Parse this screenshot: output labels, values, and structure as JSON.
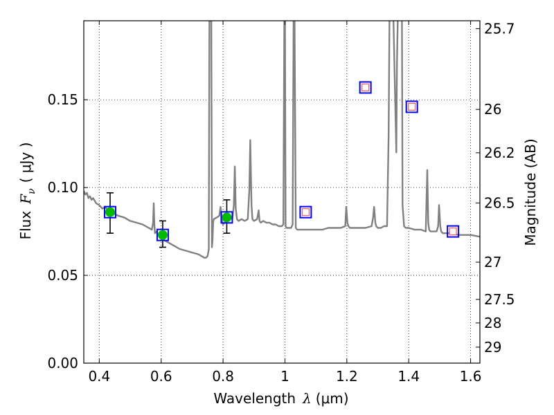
{
  "chart_data": {
    "type": "line",
    "xlabel_prefix": "Wavelength",
    "xlabel_symbol": "λ",
    "xlabel_units": "(μm)",
    "ylabel_prefix": "Flux",
    "ylabel_symbol": "F",
    "ylabel_subscript": "ν",
    "ylabel_units": "( μJy )",
    "y2label": "Magnitude (AB)",
    "xlim": [
      0.35,
      1.63
    ],
    "ylim": [
      0.0,
      0.195
    ],
    "grid": true,
    "x_ticks": [
      {
        "value": 0.4,
        "label": "0.4"
      },
      {
        "value": 0.6,
        "label": "0.6"
      },
      {
        "value": 0.8,
        "label": "0.8"
      },
      {
        "value": 1.0,
        "label": "1"
      },
      {
        "value": 1.2,
        "label": "1.2"
      },
      {
        "value": 1.4,
        "label": "1.4"
      },
      {
        "value": 1.6,
        "label": "1.6"
      }
    ],
    "y_ticks": [
      {
        "value": 0.0,
        "label": "0.00"
      },
      {
        "value": 0.05,
        "label": "0.05"
      },
      {
        "value": 0.1,
        "label": "0.10"
      },
      {
        "value": 0.15,
        "label": "0.15"
      }
    ],
    "mag_ticks": [
      {
        "value": 0.1905,
        "label": "25.7"
      },
      {
        "value": 0.1445,
        "label": "26"
      },
      {
        "value": 0.1198,
        "label": "26.2"
      },
      {
        "value": 0.0912,
        "label": "26.5"
      },
      {
        "value": 0.0575,
        "label": "27"
      },
      {
        "value": 0.0363,
        "label": "27.5"
      },
      {
        "value": 0.0229,
        "label": "28"
      },
      {
        "value": 0.0091,
        "label": "29"
      }
    ],
    "series": [
      {
        "name": "model-spectrum",
        "color": "#808080",
        "x": [
          0.35,
          0.355,
          0.36,
          0.365,
          0.37,
          0.375,
          0.38,
          0.39,
          0.4,
          0.41,
          0.42,
          0.43,
          0.44,
          0.45,
          0.46,
          0.48,
          0.5,
          0.52,
          0.54,
          0.56,
          0.57,
          0.574,
          0.576,
          0.578,
          0.58,
          0.585,
          0.59,
          0.6,
          0.62,
          0.64,
          0.66,
          0.68,
          0.7,
          0.72,
          0.73,
          0.74,
          0.745,
          0.75,
          0.754,
          0.756,
          0.76,
          0.762,
          0.764,
          0.766,
          0.768,
          0.77,
          0.78,
          0.788,
          0.792,
          0.796,
          0.8,
          0.81,
          0.82,
          0.83,
          0.835,
          0.838,
          0.841,
          0.845,
          0.85,
          0.86,
          0.87,
          0.88,
          0.885,
          0.888,
          0.892,
          0.895,
          0.9,
          0.91,
          0.915,
          0.918,
          0.922,
          0.93,
          0.94,
          0.95,
          0.96,
          0.97,
          0.98,
          0.99,
          0.995,
          0.998,
          1.0,
          1.002,
          1.005,
          1.01,
          1.02,
          1.025,
          1.028,
          1.031,
          1.035,
          1.04,
          1.06,
          1.08,
          1.1,
          1.12,
          1.14,
          1.16,
          1.18,
          1.195,
          1.198,
          1.202,
          1.205,
          1.21,
          1.22,
          1.24,
          1.26,
          1.28,
          1.285,
          1.288,
          1.292,
          1.295,
          1.3,
          1.31,
          1.32,
          1.33,
          1.335,
          1.338,
          1.342,
          1.345,
          1.35,
          1.36,
          1.362,
          1.365,
          1.368,
          1.37,
          1.372,
          1.375,
          1.378,
          1.38,
          1.385,
          1.39,
          1.395,
          1.4,
          1.42,
          1.44,
          1.455,
          1.46,
          1.463,
          1.466,
          1.47,
          1.48,
          1.49,
          1.495,
          1.498,
          1.502,
          1.505,
          1.51,
          1.52,
          1.54,
          1.56,
          1.58,
          1.6,
          1.63
        ],
        "y": [
          0.098,
          0.096,
          0.097,
          0.094,
          0.095,
          0.093,
          0.094,
          0.091,
          0.09,
          0.088,
          0.089,
          0.086,
          0.087,
          0.085,
          0.084,
          0.083,
          0.081,
          0.08,
          0.079,
          0.077,
          0.076,
          0.08,
          0.091,
          0.079,
          0.074,
          0.075,
          0.073,
          0.071,
          0.069,
          0.067,
          0.065,
          0.064,
          0.063,
          0.062,
          0.061,
          0.06,
          0.06,
          0.061,
          0.065,
          0.2,
          0.2,
          0.2,
          0.066,
          0.07,
          0.08,
          0.082,
          0.083,
          0.084,
          0.089,
          0.082,
          0.079,
          0.081,
          0.083,
          0.082,
          0.09,
          0.112,
          0.088,
          0.082,
          0.081,
          0.082,
          0.081,
          0.082,
          0.099,
          0.127,
          0.09,
          0.082,
          0.081,
          0.082,
          0.087,
          0.081,
          0.08,
          0.081,
          0.08,
          0.08,
          0.079,
          0.079,
          0.078,
          0.078,
          0.079,
          0.2,
          0.2,
          0.078,
          0.077,
          0.077,
          0.077,
          0.079,
          0.2,
          0.2,
          0.077,
          0.076,
          0.076,
          0.076,
          0.076,
          0.076,
          0.077,
          0.077,
          0.077,
          0.078,
          0.089,
          0.08,
          0.078,
          0.077,
          0.077,
          0.077,
          0.077,
          0.078,
          0.083,
          0.089,
          0.08,
          0.078,
          0.077,
          0.077,
          0.078,
          0.078,
          0.13,
          0.2,
          0.2,
          0.2,
          0.2,
          0.12,
          0.17,
          0.2,
          0.2,
          0.2,
          0.2,
          0.2,
          0.2,
          0.09,
          0.078,
          0.077,
          0.077,
          0.077,
          0.076,
          0.076,
          0.075,
          0.11,
          0.08,
          0.076,
          0.075,
          0.075,
          0.075,
          0.078,
          0.09,
          0.078,
          0.075,
          0.074,
          0.074,
          0.074,
          0.073,
          0.073,
          0.073,
          0.072
        ]
      }
    ],
    "measured_points": {
      "name": "photometry-with-errors",
      "marker_color": "#00bb00",
      "x": [
        0.435,
        0.605,
        0.812
      ],
      "y": [
        0.086,
        0.073,
        0.083
      ],
      "yerr_low": [
        0.074,
        0.066,
        0.074
      ],
      "yerr_high": [
        0.097,
        0.081,
        0.093
      ]
    },
    "model_boxes": {
      "name": "model-photometry",
      "edge_color": "#0000ff",
      "x": [
        0.435,
        0.605,
        0.812,
        1.067,
        1.26,
        1.41,
        1.543
      ],
      "y": [
        0.086,
        0.073,
        0.083,
        0.086,
        0.157,
        0.146,
        0.075
      ]
    },
    "open_squares": {
      "name": "upper-limit-photometry",
      "edge_color": "#ff5555",
      "x": [
        1.067,
        1.26,
        1.41,
        1.543
      ],
      "y": [
        0.086,
        0.157,
        0.146,
        0.075
      ]
    }
  }
}
